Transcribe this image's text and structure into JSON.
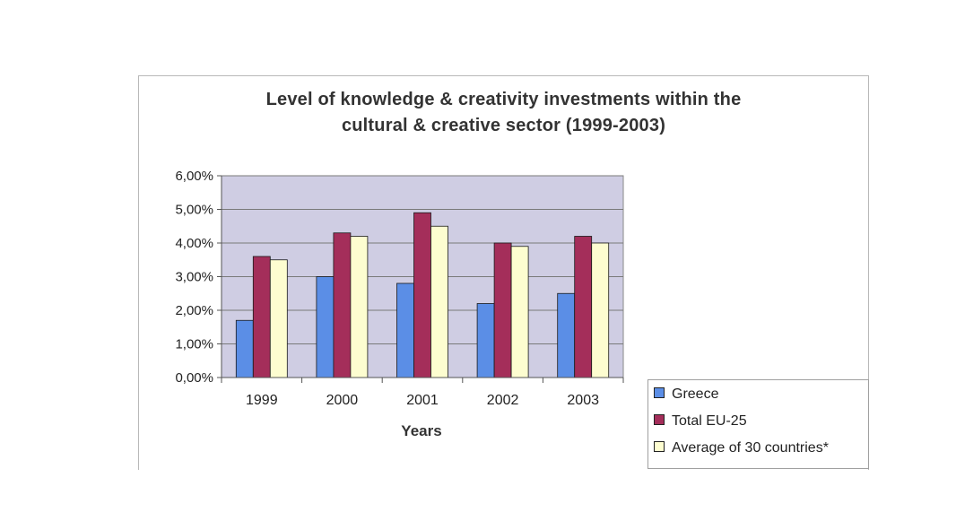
{
  "chart_data": {
    "type": "bar",
    "title": "Level of knowledge & creativity investments within the cultural & creative sector (1999-2003)",
    "title_lines": [
      "Level of knowledge & creativity investments within the",
      "cultural & creative sector (1999-2003)"
    ],
    "xlabel": "Years",
    "ylabel": "",
    "categories": [
      "1999",
      "2000",
      "2001",
      "2002",
      "2003"
    ],
    "ylim": [
      0,
      6
    ],
    "yticks": [
      0,
      1,
      2,
      3,
      4,
      5,
      6
    ],
    "ytick_labels": [
      "0,00%",
      "1,00%",
      "2,00%",
      "3,00%",
      "4,00%",
      "5,00%",
      "6,00%"
    ],
    "grid": true,
    "plot_background": "#cfcde3",
    "legend_position": "bottom-right",
    "series": [
      {
        "name": "Greece",
        "color": "#5b8ee6",
        "values": [
          1.7,
          3.0,
          2.8,
          2.2,
          2.5
        ]
      },
      {
        "name": "Total EU-25",
        "color": "#a42e5a",
        "values": [
          3.6,
          4.3,
          4.9,
          4.0,
          4.2
        ]
      },
      {
        "name": "Average of 30 countries*",
        "color": "#fdfdd0",
        "values": [
          3.5,
          4.2,
          4.5,
          3.9,
          4.0
        ]
      }
    ]
  }
}
